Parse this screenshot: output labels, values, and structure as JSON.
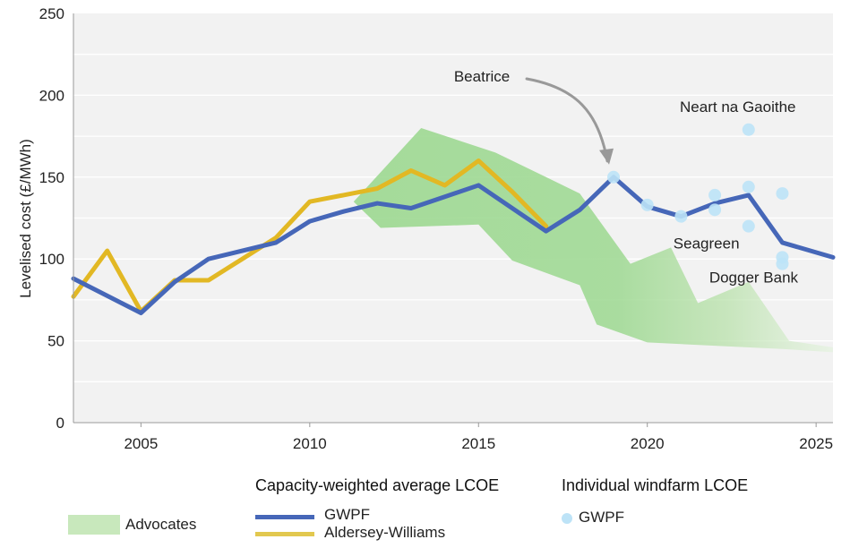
{
  "chart_data": {
    "type": "line",
    "ylabel": "Levelised cost (£/MWh)",
    "xlabel": "",
    "xlim": [
      2003,
      2025.5
    ],
    "ylim": [
      0,
      250
    ],
    "yticks": [
      0,
      50,
      100,
      150,
      200,
      250
    ],
    "xticks": [
      2005,
      2010,
      2015,
      2020,
      2025
    ],
    "grid": true,
    "series": [
      {
        "name": "GWPF",
        "color": "#4667b8",
        "x": [
          2003,
          2005,
          2006,
          2007,
          2008,
          2009,
          2010,
          2011,
          2012,
          2013,
          2014,
          2015,
          2016,
          2017,
          2018,
          2019,
          2020,
          2021,
          2022,
          2023,
          2024,
          2025.5
        ],
        "y": [
          88,
          67,
          86,
          100,
          105,
          110,
          123,
          129,
          134,
          131,
          138,
          145,
          131,
          117,
          130,
          150,
          132,
          126,
          134,
          139,
          110,
          101
        ]
      },
      {
        "name": "Aldersey-Williams",
        "color": "#e2b824",
        "x": [
          2003,
          2004,
          2005,
          2006,
          2007,
          2008,
          2009,
          2010,
          2011,
          2012,
          2013,
          2014,
          2015,
          2016,
          2017
        ],
        "y": [
          77,
          105,
          68,
          87,
          87,
          100,
          113,
          135,
          139,
          143,
          154,
          145,
          160,
          141,
          120
        ]
      }
    ],
    "area": {
      "name": "Advocates",
      "color": "#9cd890",
      "upper": {
        "x": [
          2011.3,
          2013.3,
          2015.5,
          2017.0,
          2018.0,
          2019.5,
          2020.7,
          2021.5,
          2023.0,
          2024.2,
          2025.5
        ],
        "y": [
          135,
          180,
          165,
          150,
          140,
          97,
          107,
          73,
          86,
          50,
          46
        ]
      },
      "lower": {
        "x": [
          2012.1,
          2015.0,
          2016.0,
          2018.0,
          2018.5,
          2020.0,
          2022.0,
          2024.0,
          2025.5
        ],
        "y": [
          119,
          121,
          99,
          84,
          60,
          49,
          47,
          45,
          43
        ]
      }
    },
    "points": {
      "name": "GWPF",
      "color": "#bde3f7",
      "x": [
        2019,
        2020,
        2021,
        2022,
        2022,
        2023,
        2023,
        2023,
        2024,
        2024,
        2024
      ],
      "y": [
        150,
        133,
        126,
        139,
        130,
        179,
        144,
        120,
        140,
        101,
        97
      ]
    },
    "annotations": [
      {
        "text": "Beatrice",
        "x": 2019,
        "y": 150,
        "arrow": true
      },
      {
        "text": "Neart na Gaoithe",
        "x": 2023,
        "y": 179
      },
      {
        "text": "Seagreen",
        "x": 2021.8,
        "y": 120
      },
      {
        "text": "Dogger Bank",
        "x": 2023.2,
        "y": 101
      }
    ]
  },
  "legend": {
    "heading_capacity": "Capacity-weighted average LCOE",
    "heading_individual": "Individual windfarm LCOE",
    "advocates_label": "Advocates",
    "gwpf_label": "GWPF",
    "aldersey_label": "Aldersey-Williams",
    "points_label": "GWPF",
    "area_color": "#c8e8bc",
    "gwpf_color": "#4667b8",
    "aldersey_color": "#e2c84f",
    "point_color": "#bde3f7"
  }
}
